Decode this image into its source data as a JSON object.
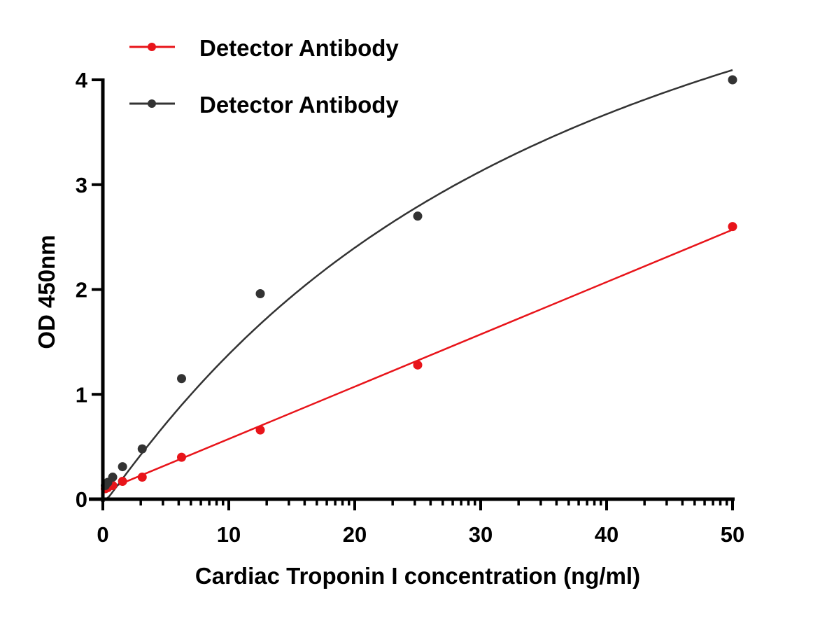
{
  "chart_data": {
    "type": "line",
    "title": "",
    "xlabel": "Cardiac Troponin I concentration (ng/ml)",
    "ylabel": "OD 450nm",
    "xlim": [
      0,
      50
    ],
    "ylim": [
      0,
      4
    ],
    "x_ticks": [
      "0",
      "10",
      "20",
      "30",
      "40",
      "50"
    ],
    "y_ticks": [
      "0",
      "1",
      "2",
      "3",
      "4"
    ],
    "grid": false,
    "legend_position": "top-left",
    "series": [
      {
        "name": "Detector Antibody",
        "color": "#e8141a",
        "fit": "linear",
        "x": [
          0.195,
          0.39,
          0.78,
          1.5625,
          3.125,
          6.25,
          12.5,
          25,
          50
        ],
        "values": [
          0.1,
          0.11,
          0.13,
          0.17,
          0.21,
          0.4,
          0.66,
          1.28,
          2.6
        ]
      },
      {
        "name": "Detector Antibody",
        "color": "#333333",
        "fit": "curve",
        "x": [
          0.195,
          0.39,
          0.78,
          1.5625,
          3.125,
          6.25,
          12.5,
          25,
          50
        ],
        "values": [
          0.13,
          0.16,
          0.21,
          0.31,
          0.48,
          1.15,
          1.96,
          2.7,
          4.0
        ]
      }
    ]
  },
  "legend": {
    "items": [
      {
        "label": "Detector Antibody",
        "color": "#e8141a"
      },
      {
        "label": "Detector Antibody",
        "color": "#333333"
      }
    ]
  },
  "axes": {
    "xlabel": "Cardiac Troponin I concentration (ng/ml)",
    "ylabel": "OD 450nm"
  }
}
